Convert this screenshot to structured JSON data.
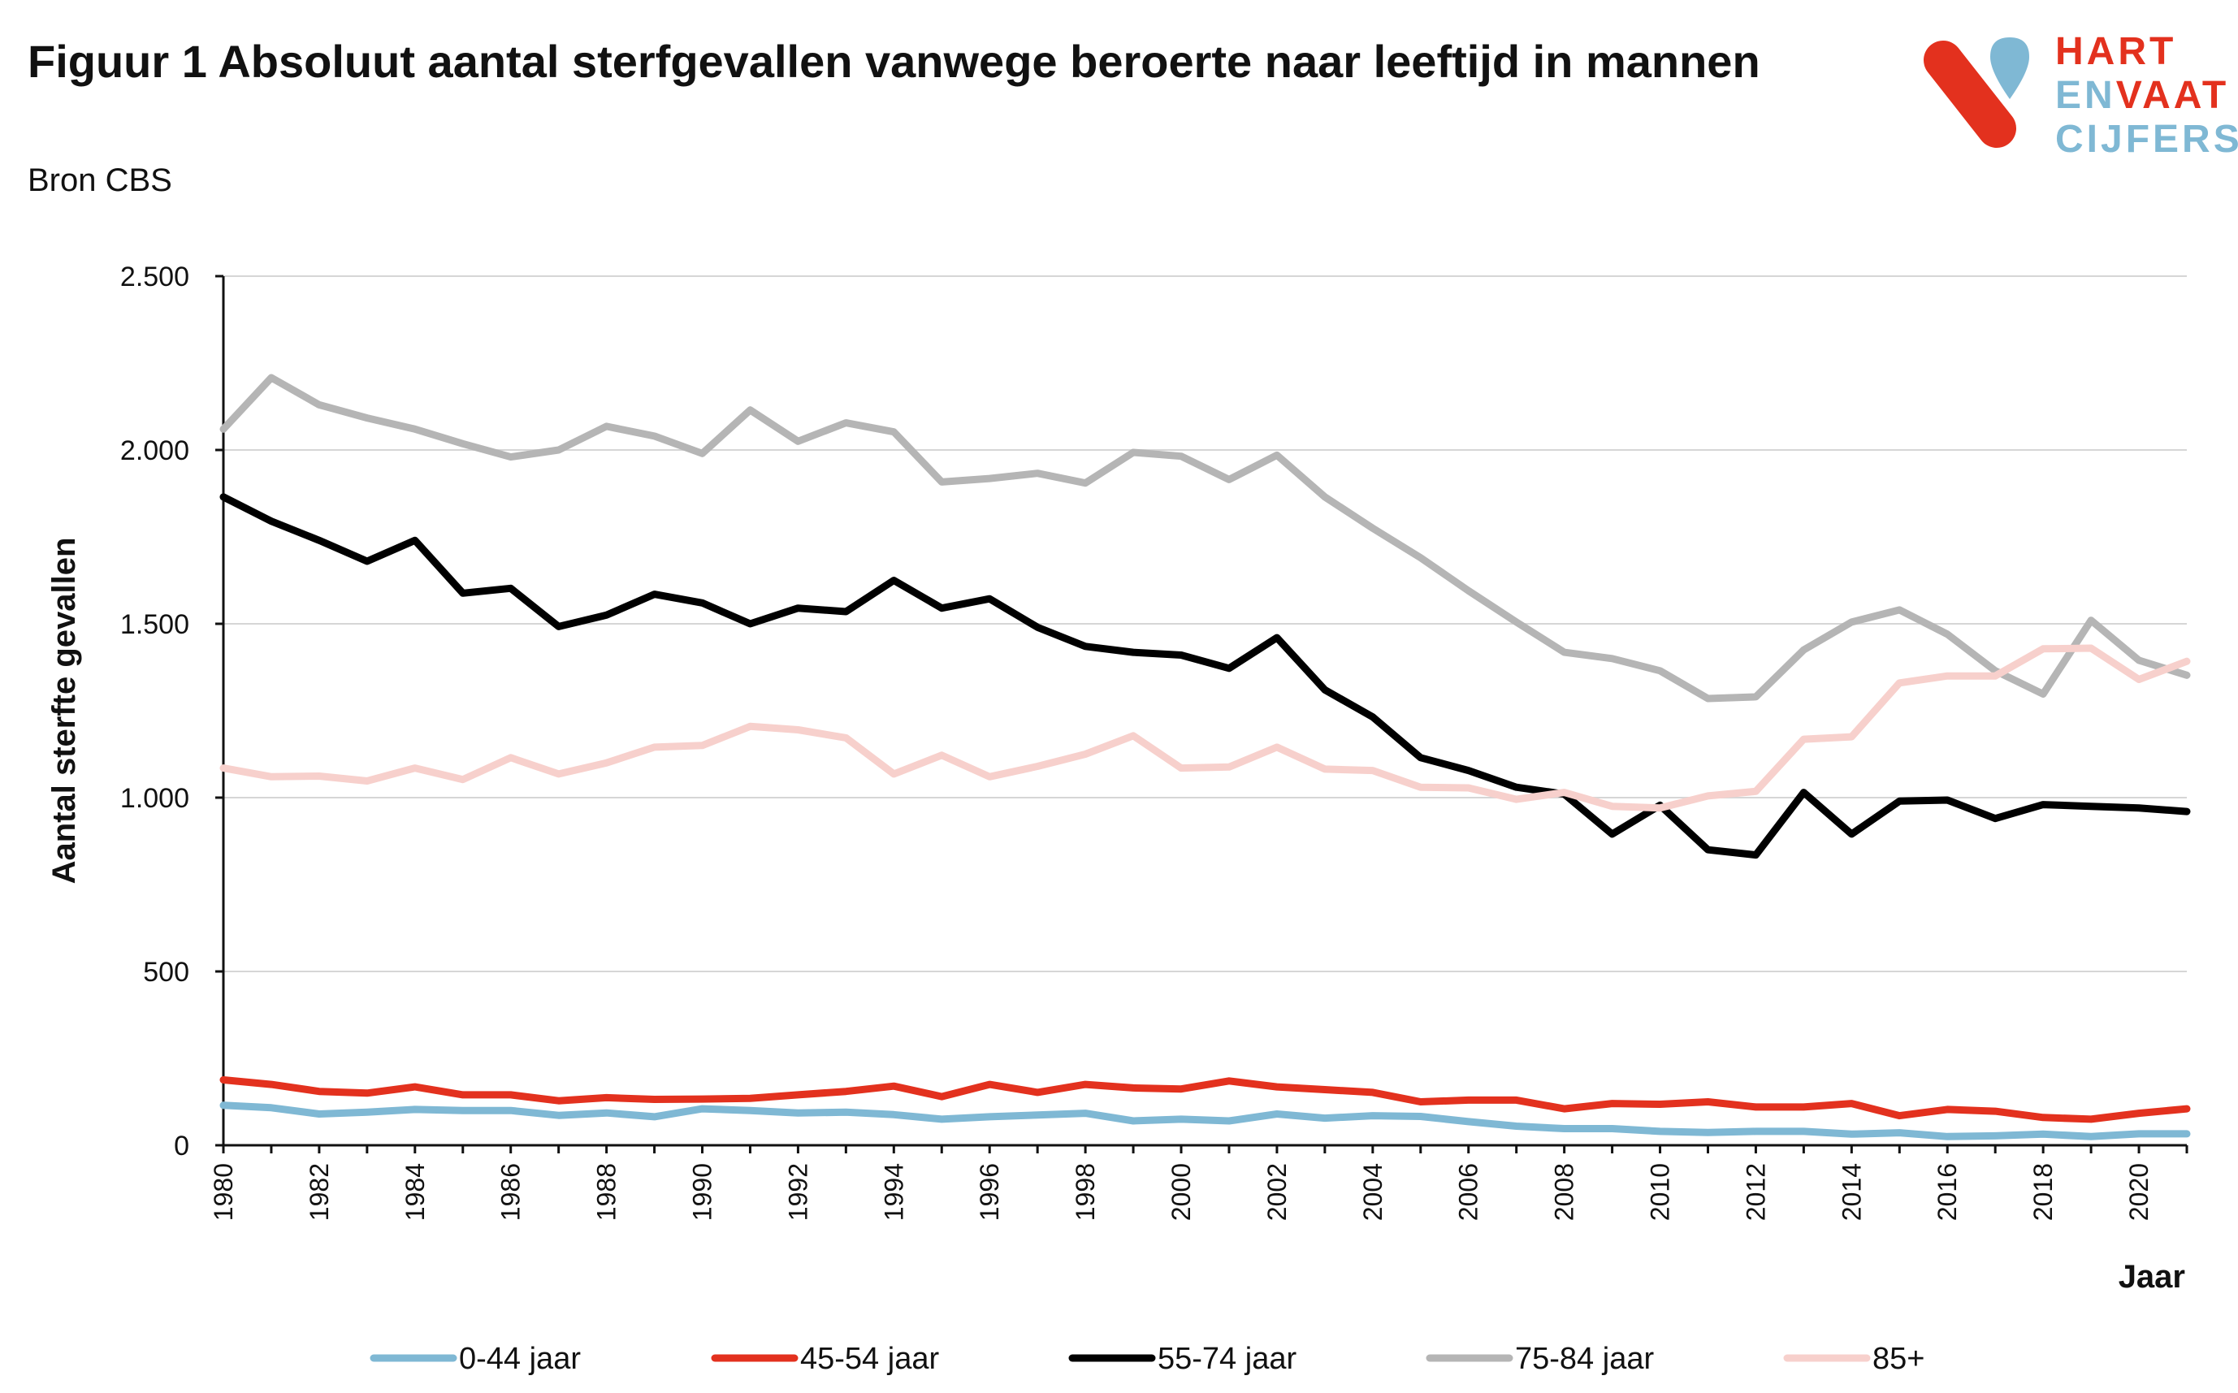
{
  "title": "Figuur 1 Absoluut aantal sterfgevallen vanwege beroerte naar leeftijd in mannen",
  "subtitle": "Bron CBS",
  "logo": {
    "line1": "HART",
    "line2a": "EN",
    "line2b": "VAAT",
    "line3": "CIJFERS",
    "red": "#e3311e",
    "blue": "#7fb8d4"
  },
  "chart_data": {
    "type": "line",
    "xlabel": "Jaar",
    "ylabel": "Aantal sterfte gevallen",
    "ylim": [
      0,
      2500
    ],
    "xlim": [
      1980,
      2021
    ],
    "yticks": [
      {
        "v": 0,
        "label": "0"
      },
      {
        "v": 500,
        "label": "500"
      },
      {
        "v": 1000,
        "label": "1.000"
      },
      {
        "v": 1500,
        "label": "1.500"
      },
      {
        "v": 2000,
        "label": "2.000"
      },
      {
        "v": 2500,
        "label": "2.500"
      }
    ],
    "xticks": [
      "1980",
      "1982",
      "1984",
      "1986",
      "1988",
      "1990",
      "1992",
      "1994",
      "1996",
      "1998",
      "2000",
      "2002",
      "2004",
      "2006",
      "2008",
      "2010",
      "2012",
      "2014",
      "2016",
      "2018",
      "2020"
    ],
    "grid": true,
    "legend_position": "bottom",
    "x": [
      1980,
      1981,
      1982,
      1983,
      1984,
      1985,
      1986,
      1987,
      1988,
      1989,
      1990,
      1991,
      1992,
      1993,
      1994,
      1995,
      1996,
      1997,
      1998,
      1999,
      2000,
      2001,
      2002,
      2003,
      2004,
      2005,
      2006,
      2007,
      2008,
      2009,
      2010,
      2011,
      2012,
      2013,
      2014,
      2015,
      2016,
      2017,
      2018,
      2019,
      2020,
      2021
    ],
    "series": [
      {
        "name": "0-44 jaar",
        "color": "#7fb8d4",
        "values": [
          115,
          108,
          90,
          95,
          103,
          100,
          100,
          86,
          93,
          82,
          105,
          100,
          93,
          95,
          88,
          75,
          82,
          87,
          92,
          70,
          75,
          70,
          90,
          78,
          85,
          83,
          68,
          55,
          48,
          48,
          40,
          37,
          40,
          40,
          32,
          36,
          25,
          27,
          32,
          25,
          33,
          33
        ]
      },
      {
        "name": "45-54 jaar",
        "color": "#e3311e",
        "values": [
          188,
          175,
          155,
          150,
          168,
          145,
          145,
          128,
          137,
          132,
          133,
          135,
          145,
          155,
          170,
          140,
          175,
          152,
          175,
          165,
          162,
          185,
          168,
          160,
          152,
          125,
          130,
          130,
          105,
          120,
          118,
          125,
          110,
          110,
          120,
          85,
          103,
          98,
          80,
          75,
          92,
          105
        ]
      },
      {
        "name": "55-74 jaar",
        "color": "#000000",
        "values": [
          1865,
          1795,
          1740,
          1680,
          1740,
          1588,
          1602,
          1492,
          1525,
          1585,
          1560,
          1500,
          1545,
          1535,
          1625,
          1545,
          1572,
          1490,
          1435,
          1418,
          1410,
          1372,
          1460,
          1310,
          1232,
          1115,
          1078,
          1030,
          1010,
          895,
          978,
          850,
          835,
          1015,
          895,
          990,
          993,
          940,
          980,
          975,
          970,
          960
        ]
      },
      {
        "name": "75-84 jaar",
        "color": "#b5b5b5",
        "values": [
          2060,
          2208,
          2130,
          2092,
          2060,
          2018,
          1980,
          2000,
          2068,
          2040,
          1990,
          2115,
          2025,
          2078,
          2052,
          1908,
          1918,
          1933,
          1905,
          1993,
          1982,
          1915,
          1985,
          1865,
          1775,
          1690,
          1595,
          1505,
          1418,
          1400,
          1365,
          1285,
          1290,
          1425,
          1505,
          1540,
          1470,
          1365,
          1298,
          1510,
          1395,
          1352
        ]
      },
      {
        "name": "85+",
        "color": "#f7d0cc",
        "values": [
          1085,
          1060,
          1062,
          1048,
          1085,
          1052,
          1115,
          1068,
          1100,
          1145,
          1150,
          1205,
          1195,
          1172,
          1068,
          1122,
          1060,
          1090,
          1125,
          1178,
          1085,
          1088,
          1145,
          1082,
          1078,
          1030,
          1028,
          995,
          1015,
          975,
          970,
          1005,
          1018,
          1168,
          1175,
          1330,
          1350,
          1350,
          1428,
          1430,
          1340,
          1392
        ]
      }
    ]
  }
}
